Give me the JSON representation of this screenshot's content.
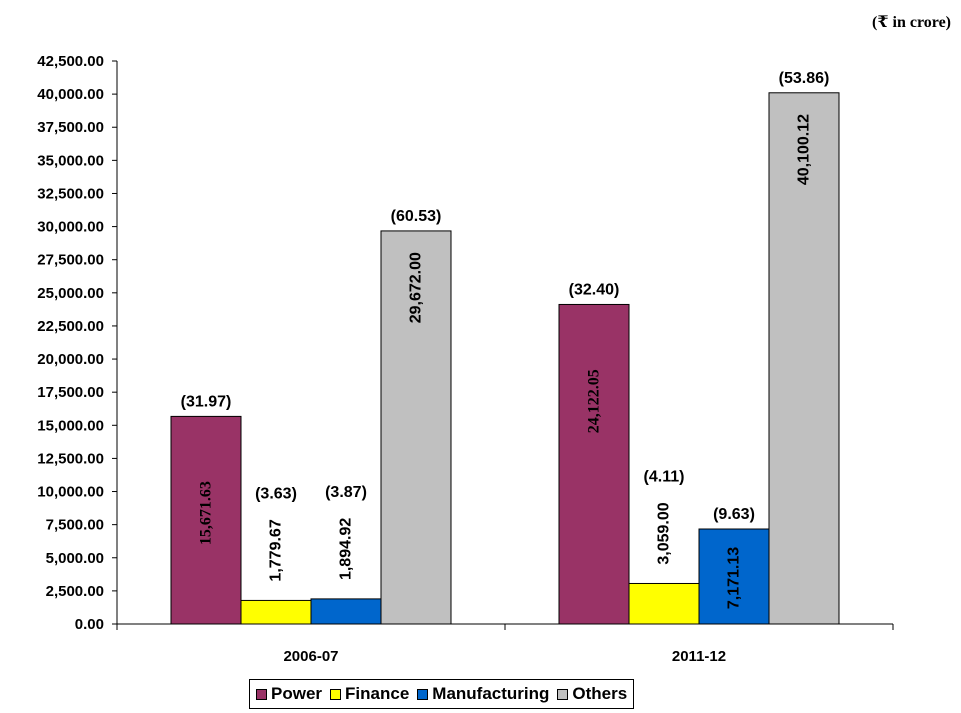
{
  "unit_note": "(₹ in crore)",
  "colors": {
    "power": "#993366",
    "finance": "#ffff00",
    "manufacturing": "#0066cc",
    "others": "#c0c0c0"
  },
  "chart_data": {
    "type": "bar",
    "categories": [
      "2006-07",
      "2011-12"
    ],
    "ylim": [
      0,
      42500
    ],
    "yticks": [
      "0.00",
      "2,500.00",
      "5,000.00",
      "7,500.00",
      "10,000.00",
      "12,500.00",
      "15,000.00",
      "17,500.00",
      "20,000.00",
      "22,500.00",
      "25,000.00",
      "27,500.00",
      "30,000.00",
      "32,500.00",
      "35,000.00",
      "37,500.00",
      "40,000.00",
      "42,500.00"
    ],
    "series": [
      {
        "name": "Power",
        "color": "#993366",
        "values": [
          15671.63,
          24122.05
        ],
        "value_labels": [
          "15,671.63",
          "24,122.05"
        ],
        "share_labels": [
          "(31.97)",
          "(32.40)"
        ]
      },
      {
        "name": "Finance",
        "color": "#ffff00",
        "values": [
          1779.67,
          3059.0
        ],
        "value_labels": [
          "1,779.67",
          "3,059.00"
        ],
        "share_labels": [
          "(3.63)",
          "(4.11)"
        ]
      },
      {
        "name": "Manufacturing",
        "color": "#0066cc",
        "values": [
          1894.92,
          7171.13
        ],
        "value_labels": [
          "1,894.92",
          "7,171.13"
        ],
        "share_labels": [
          "(3.87)",
          "(9.63)"
        ]
      },
      {
        "name": "Others",
        "color": "#c0c0c0",
        "values": [
          29672.0,
          40100.12
        ],
        "value_labels": [
          "29,672.00",
          "40,100.12"
        ],
        "share_labels": [
          "(60.53)",
          "(53.86)"
        ]
      }
    ],
    "legend": "bottom"
  }
}
